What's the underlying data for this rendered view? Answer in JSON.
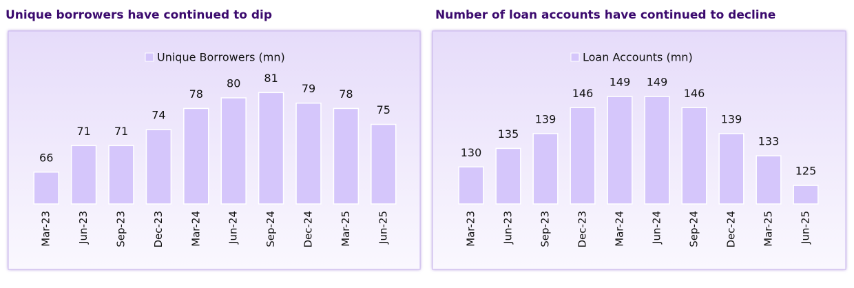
{
  "chart_data": [
    {
      "type": "bar",
      "title": "Unique borrowers have continued to dip",
      "categories": [
        "Mar-23",
        "Jun-23",
        "Sep-23",
        "Dec-23",
        "Mar-24",
        "Jun-24",
        "Sep-24",
        "Dec-24",
        "Mar-25",
        "Jun-25"
      ],
      "series": [
        {
          "name": "Unique Borrowers (mn)",
          "color": "#d5c6fb",
          "values": [
            66,
            71,
            71,
            74,
            78,
            80,
            81,
            79,
            78,
            75
          ]
        }
      ],
      "ylim": [
        60,
        90
      ],
      "legend": "top"
    },
    {
      "type": "bar",
      "title": "Number of loan accounts have continued to decline",
      "categories": [
        "Mar-23",
        "Jun-23",
        "Sep-23",
        "Dec-23",
        "Mar-24",
        "Jun-24",
        "Sep-24",
        "Dec-24",
        "Mar-25",
        "Jun-25"
      ],
      "series": [
        {
          "name": "Loan Accounts (mn)",
          "color": "#d5c6fb",
          "values": [
            130,
            135,
            139,
            146,
            149,
            149,
            146,
            139,
            133,
            125
          ]
        }
      ],
      "ylim": [
        120,
        160
      ],
      "legend": "top"
    }
  ]
}
